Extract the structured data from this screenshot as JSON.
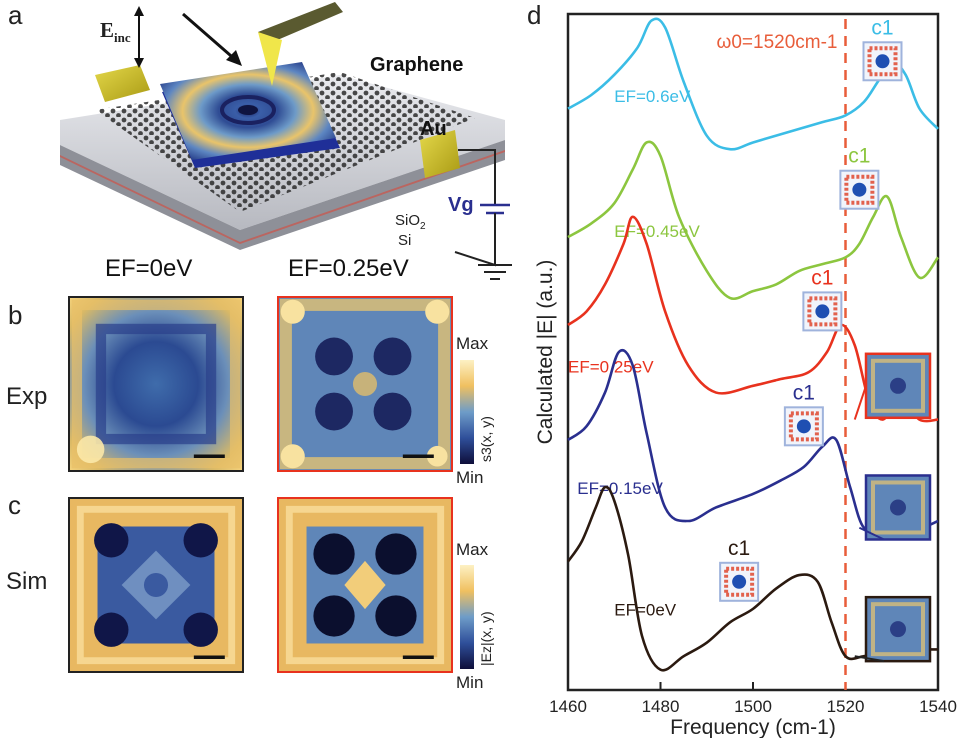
{
  "panel_labels": {
    "a": "a",
    "b": "b",
    "c": "c",
    "d": "d"
  },
  "panel_a": {
    "e_inc": "E",
    "e_inc_sub": "inc",
    "graphene": "Graphene",
    "au": "Au",
    "vg": "Vg",
    "sio2": "SiO",
    "sio2_sub": "2",
    "si": "Si"
  },
  "panel_bc": {
    "col_left_title": "EF=0eV",
    "col_right_title": "EF=0.25eV",
    "row_exp": "Exp",
    "row_sim": "Sim",
    "cbar_exp": {
      "max": "Max",
      "min": "Min",
      "label": "s3(x, y)"
    },
    "cbar_sim": {
      "max": "Max",
      "min": "Min",
      "label": "|Ez|(x, y)"
    }
  },
  "colors": {
    "ef_06": "#3bbde6",
    "ef_045": "#8cc63f",
    "ef_025": "#e8321e",
    "ef_015": "#2a2f8f",
    "ef_0": "#2b1a10",
    "omega0": "#e85d3a",
    "map_high": "#f1c15e",
    "map_mid": "#3d6fb0",
    "map_low": "#141a4a"
  },
  "chart_data": {
    "type": "line",
    "xlabel": "Frequency (cm-1)",
    "ylabel": "Calculated |E| (a.u.)",
    "xlim": [
      1460,
      1540
    ],
    "xticks": [
      "1460",
      "1480",
      "1500",
      "1520",
      "1540"
    ],
    "annotation": "ω0=1520cm-1",
    "reference_line_x": 1520,
    "mode_label": "c1",
    "series": [
      {
        "name": "EF=0.6eV",
        "color": "#3bbde6",
        "x": [
          1460,
          1465,
          1470,
          1475,
          1478,
          1481,
          1485,
          1490,
          1495,
          1500,
          1505,
          1510,
          1515,
          1520,
          1524,
          1527,
          1530,
          1533,
          1536,
          1540
        ],
        "y": [
          0.86,
          0.88,
          0.91,
          0.95,
          0.99,
          0.98,
          0.9,
          0.82,
          0.8,
          0.81,
          0.82,
          0.83,
          0.84,
          0.85,
          0.87,
          0.9,
          0.93,
          0.91,
          0.86,
          0.83
        ]
      },
      {
        "name": "EF=0.45eV",
        "color": "#8cc63f",
        "x": [
          1460,
          1465,
          1470,
          1474,
          1477,
          1480,
          1484,
          1490,
          1495,
          1500,
          1505,
          1510,
          1515,
          1520,
          1523,
          1526,
          1529,
          1532,
          1536,
          1540
        ],
        "y": [
          0.67,
          0.69,
          0.72,
          0.77,
          0.81,
          0.79,
          0.7,
          0.62,
          0.58,
          0.59,
          0.6,
          0.62,
          0.63,
          0.64,
          0.66,
          0.7,
          0.73,
          0.67,
          0.61,
          0.64
        ]
      },
      {
        "name": "EF=0.25eV",
        "color": "#e8321e",
        "x": [
          1460,
          1464,
          1468,
          1472,
          1474,
          1477,
          1481,
          1486,
          1492,
          1500,
          1506,
          1512,
          1516,
          1519,
          1522,
          1525,
          1528,
          1532,
          1536,
          1540
        ],
        "y": [
          0.54,
          0.56,
          0.6,
          0.66,
          0.7,
          0.66,
          0.56,
          0.48,
          0.44,
          0.45,
          0.46,
          0.47,
          0.5,
          0.54,
          0.51,
          0.43,
          0.4,
          0.43,
          0.4,
          0.4
        ]
      },
      {
        "name": "EF=0.15eV",
        "color": "#2a2f8f",
        "x": [
          1460,
          1464,
          1468,
          1471,
          1474,
          1477,
          1481,
          1486,
          1492,
          1500,
          1506,
          1511,
          1515,
          1518,
          1521,
          1524,
          1528,
          1532,
          1536,
          1540
        ],
        "y": [
          0.37,
          0.39,
          0.44,
          0.5,
          0.48,
          0.38,
          0.27,
          0.25,
          0.27,
          0.29,
          0.31,
          0.33,
          0.36,
          0.37,
          0.3,
          0.24,
          0.25,
          0.25,
          0.24,
          0.25
        ]
      },
      {
        "name": "EF=0eV",
        "color": "#2b1a10",
        "x": [
          1460,
          1463,
          1466,
          1468,
          1470,
          1473,
          1476,
          1480,
          1485,
          1490,
          1495,
          1500,
          1505,
          1510,
          1514,
          1517,
          1520,
          1524,
          1530,
          1540
        ],
        "y": [
          0.19,
          0.22,
          0.27,
          0.3,
          0.28,
          0.2,
          0.08,
          0.03,
          0.05,
          0.07,
          0.1,
          0.12,
          0.15,
          0.17,
          0.16,
          0.1,
          0.05,
          0.05,
          0.06,
          0.06
        ]
      }
    ]
  }
}
